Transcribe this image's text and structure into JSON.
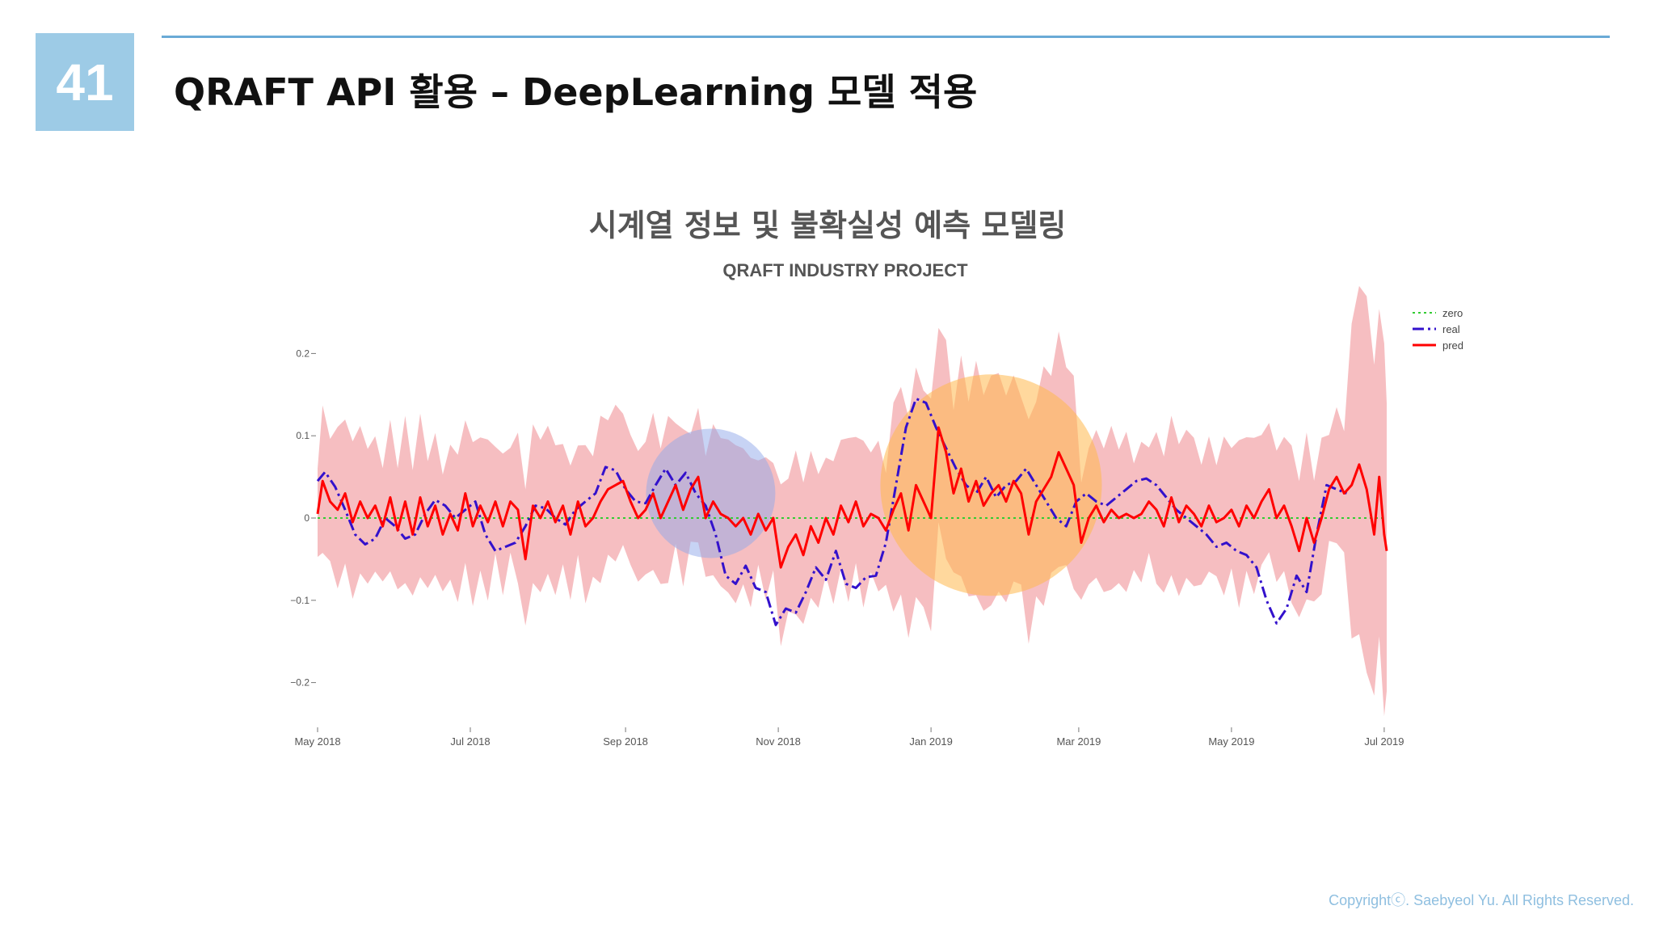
{
  "slide": {
    "number": "41",
    "title": "QRAFT API 활용 – DeepLearning 모델 적용",
    "copyright": "Copyrightⓒ. Saebyeol Yu. All Rights Reserved."
  },
  "colors": {
    "accent": "#6aaad6",
    "badge": "#9dcbe6",
    "band": "#f4b3b6",
    "real": "#3311cc",
    "pred": "#ff0000",
    "zero": "#33cc33"
  },
  "chart_data": {
    "type": "line",
    "title": "시계열 정보 및 불확실성 예측 모델링",
    "subtitle": "QRAFT INDUSTRY PROJECT",
    "x_ticks": [
      "May 2018",
      "Jul 2018",
      "Sep 2018",
      "Nov 2018",
      "Jan 2019",
      "Mar 2019",
      "May 2019",
      "Jul 2019"
    ],
    "x_tick_dates": [
      "2018-05-01",
      "2018-07-01",
      "2018-09-01",
      "2018-11-01",
      "2019-01-01",
      "2019-03-01",
      "2019-05-01",
      "2019-07-01"
    ],
    "y_ticks": [
      0.2,
      0.1,
      0,
      -0.1,
      -0.2
    ],
    "y_tick_labels": [
      "0.2",
      "0.1",
      "0",
      "−0.1",
      "−0.2"
    ],
    "xlim": [
      "2018-05-01",
      "2019-07-02"
    ],
    "ylim": [
      -0.26,
      0.27
    ],
    "legend": {
      "position": "top-right",
      "entries": [
        "zero",
        "real",
        "pred"
      ]
    },
    "grid": false,
    "highlights": [
      {
        "center": [
          "2018-10-05",
          0.03
        ],
        "color": "blue"
      },
      {
        "center": [
          "2019-01-25",
          0.04
        ],
        "color": "orange"
      }
    ],
    "series": [
      {
        "name": "zero",
        "style": "dotted",
        "color": "#33cc33",
        "points": [
          [
            "2018-05-01",
            0
          ],
          [
            "2019-07-02",
            0
          ]
        ]
      },
      {
        "name": "real",
        "style": "dashdot",
        "color": "#3311cc",
        "points": [
          [
            "2018-05-01",
            0.045
          ],
          [
            "2018-05-04",
            0.056
          ],
          [
            "2018-05-08",
            0.038
          ],
          [
            "2018-05-12",
            0.01
          ],
          [
            "2018-05-16",
            -0.02
          ],
          [
            "2018-05-20",
            -0.032
          ],
          [
            "2018-05-24",
            -0.025
          ],
          [
            "2018-05-28",
            0.0
          ],
          [
            "2018-06-01",
            -0.01
          ],
          [
            "2018-06-05",
            -0.025
          ],
          [
            "2018-06-09",
            -0.02
          ],
          [
            "2018-06-13",
            0.005
          ],
          [
            "2018-06-17",
            0.022
          ],
          [
            "2018-06-21",
            0.015
          ],
          [
            "2018-06-25",
            0.0
          ],
          [
            "2018-06-29",
            0.01
          ],
          [
            "2018-07-03",
            0.02
          ],
          [
            "2018-07-07",
            -0.02
          ],
          [
            "2018-07-11",
            -0.04
          ],
          [
            "2018-07-15",
            -0.035
          ],
          [
            "2018-07-19",
            -0.03
          ],
          [
            "2018-07-23",
            -0.01
          ],
          [
            "2018-07-27",
            0.015
          ],
          [
            "2018-07-31",
            0.012
          ],
          [
            "2018-08-04",
            0.0
          ],
          [
            "2018-08-08",
            -0.008
          ],
          [
            "2018-08-12",
            0.01
          ],
          [
            "2018-08-16",
            0.02
          ],
          [
            "2018-08-20",
            0.03
          ],
          [
            "2018-08-24",
            0.062
          ],
          [
            "2018-08-28",
            0.058
          ],
          [
            "2018-09-01",
            0.035
          ],
          [
            "2018-09-05",
            0.02
          ],
          [
            "2018-09-09",
            0.018
          ],
          [
            "2018-09-13",
            0.04
          ],
          [
            "2018-09-17",
            0.06
          ],
          [
            "2018-09-21",
            0.04
          ],
          [
            "2018-09-25",
            0.055
          ],
          [
            "2018-09-29",
            0.03
          ],
          [
            "2018-10-03",
            0.015
          ],
          [
            "2018-10-07",
            -0.02
          ],
          [
            "2018-10-11",
            -0.07
          ],
          [
            "2018-10-15",
            -0.08
          ],
          [
            "2018-10-19",
            -0.058
          ],
          [
            "2018-10-23",
            -0.085
          ],
          [
            "2018-10-27",
            -0.09
          ],
          [
            "2018-10-31",
            -0.13
          ],
          [
            "2018-11-04",
            -0.11
          ],
          [
            "2018-11-08",
            -0.115
          ],
          [
            "2018-11-12",
            -0.09
          ],
          [
            "2018-11-16",
            -0.06
          ],
          [
            "2018-11-20",
            -0.075
          ],
          [
            "2018-11-24",
            -0.04
          ],
          [
            "2018-11-28",
            -0.08
          ],
          [
            "2018-12-02",
            -0.085
          ],
          [
            "2018-12-06",
            -0.072
          ],
          [
            "2018-12-10",
            -0.07
          ],
          [
            "2018-12-14",
            -0.03
          ],
          [
            "2018-12-18",
            0.04
          ],
          [
            "2018-12-22",
            0.11
          ],
          [
            "2018-12-26",
            0.145
          ],
          [
            "2018-12-30",
            0.14
          ],
          [
            "2019-01-03",
            0.11
          ],
          [
            "2019-01-07",
            0.085
          ],
          [
            "2019-01-11",
            0.06
          ],
          [
            "2019-01-15",
            0.04
          ],
          [
            "2019-01-19",
            0.03
          ],
          [
            "2019-01-23",
            0.05
          ],
          [
            "2019-01-27",
            0.025
          ],
          [
            "2019-01-31",
            0.04
          ],
          [
            "2019-02-04",
            0.045
          ],
          [
            "2019-02-08",
            0.06
          ],
          [
            "2019-02-12",
            0.04
          ],
          [
            "2019-02-16",
            0.02
          ],
          [
            "2019-02-20",
            0.0
          ],
          [
            "2019-02-24",
            -0.01
          ],
          [
            "2019-02-28",
            0.02
          ],
          [
            "2019-03-04",
            0.03
          ],
          [
            "2019-03-08",
            0.02
          ],
          [
            "2019-03-12",
            0.015
          ],
          [
            "2019-03-16",
            0.025
          ],
          [
            "2019-03-20",
            0.035
          ],
          [
            "2019-03-24",
            0.045
          ],
          [
            "2019-03-28",
            0.048
          ],
          [
            "2019-04-01",
            0.04
          ],
          [
            "2019-04-05",
            0.025
          ],
          [
            "2019-04-09",
            0.01
          ],
          [
            "2019-04-13",
            0.0
          ],
          [
            "2019-04-17",
            -0.01
          ],
          [
            "2019-04-21",
            -0.02
          ],
          [
            "2019-04-25",
            -0.035
          ],
          [
            "2019-04-29",
            -0.03
          ],
          [
            "2019-05-03",
            -0.04
          ],
          [
            "2019-05-07",
            -0.045
          ],
          [
            "2019-05-11",
            -0.06
          ],
          [
            "2019-05-15",
            -0.1
          ],
          [
            "2019-05-19",
            -0.128
          ],
          [
            "2019-05-23",
            -0.11
          ],
          [
            "2019-05-27",
            -0.07
          ],
          [
            "2019-05-31",
            -0.09
          ],
          [
            "2019-06-04",
            -0.02
          ],
          [
            "2019-06-08",
            0.04
          ],
          [
            "2019-06-12",
            0.035
          ],
          [
            "2019-06-16",
            0.03
          ]
        ]
      },
      {
        "name": "pred",
        "style": "solid",
        "color": "#ff0000",
        "points": [
          [
            "2018-05-01",
            0.005
          ],
          [
            "2018-05-03",
            0.045
          ],
          [
            "2018-05-06",
            0.02
          ],
          [
            "2018-05-09",
            0.01
          ],
          [
            "2018-05-12",
            0.03
          ],
          [
            "2018-05-15",
            -0.005
          ],
          [
            "2018-05-18",
            0.02
          ],
          [
            "2018-05-21",
            0.0
          ],
          [
            "2018-05-24",
            0.015
          ],
          [
            "2018-05-27",
            -0.01
          ],
          [
            "2018-05-30",
            0.025
          ],
          [
            "2018-06-02",
            -0.015
          ],
          [
            "2018-06-05",
            0.02
          ],
          [
            "2018-06-08",
            -0.02
          ],
          [
            "2018-06-11",
            0.025
          ],
          [
            "2018-06-14",
            -0.01
          ],
          [
            "2018-06-17",
            0.015
          ],
          [
            "2018-06-20",
            -0.02
          ],
          [
            "2018-06-23",
            0.005
          ],
          [
            "2018-06-26",
            -0.015
          ],
          [
            "2018-06-29",
            0.03
          ],
          [
            "2018-07-02",
            -0.01
          ],
          [
            "2018-07-05",
            0.015
          ],
          [
            "2018-07-08",
            -0.005
          ],
          [
            "2018-07-11",
            0.02
          ],
          [
            "2018-07-14",
            -0.01
          ],
          [
            "2018-07-17",
            0.02
          ],
          [
            "2018-07-20",
            0.01
          ],
          [
            "2018-07-23",
            -0.05
          ],
          [
            "2018-07-26",
            0.015
          ],
          [
            "2018-07-29",
            0.0
          ],
          [
            "2018-08-01",
            0.02
          ],
          [
            "2018-08-04",
            -0.005
          ],
          [
            "2018-08-07",
            0.015
          ],
          [
            "2018-08-10",
            -0.02
          ],
          [
            "2018-08-13",
            0.02
          ],
          [
            "2018-08-16",
            -0.01
          ],
          [
            "2018-08-19",
            0.0
          ],
          [
            "2018-08-22",
            0.02
          ],
          [
            "2018-08-25",
            0.035
          ],
          [
            "2018-08-28",
            0.04
          ],
          [
            "2018-08-31",
            0.045
          ],
          [
            "2018-09-03",
            0.02
          ],
          [
            "2018-09-06",
            0.0
          ],
          [
            "2018-09-09",
            0.01
          ],
          [
            "2018-09-12",
            0.03
          ],
          [
            "2018-09-15",
            0.0
          ],
          [
            "2018-09-18",
            0.02
          ],
          [
            "2018-09-21",
            0.04
          ],
          [
            "2018-09-24",
            0.01
          ],
          [
            "2018-09-27",
            0.035
          ],
          [
            "2018-09-30",
            0.05
          ],
          [
            "2018-10-03",
            0.0
          ],
          [
            "2018-10-06",
            0.02
          ],
          [
            "2018-10-09",
            0.005
          ],
          [
            "2018-10-12",
            0.0
          ],
          [
            "2018-10-15",
            -0.01
          ],
          [
            "2018-10-18",
            0.0
          ],
          [
            "2018-10-21",
            -0.02
          ],
          [
            "2018-10-24",
            0.005
          ],
          [
            "2018-10-27",
            -0.015
          ],
          [
            "2018-10-30",
            0.0
          ],
          [
            "2018-11-02",
            -0.06
          ],
          [
            "2018-11-05",
            -0.035
          ],
          [
            "2018-11-08",
            -0.02
          ],
          [
            "2018-11-11",
            -0.045
          ],
          [
            "2018-11-14",
            -0.01
          ],
          [
            "2018-11-17",
            -0.03
          ],
          [
            "2018-11-20",
            0.0
          ],
          [
            "2018-11-23",
            -0.02
          ],
          [
            "2018-11-26",
            0.015
          ],
          [
            "2018-11-29",
            -0.005
          ],
          [
            "2018-12-02",
            0.02
          ],
          [
            "2018-12-05",
            -0.01
          ],
          [
            "2018-12-08",
            0.005
          ],
          [
            "2018-12-11",
            0.0
          ],
          [
            "2018-12-14",
            -0.015
          ],
          [
            "2018-12-17",
            0.01
          ],
          [
            "2018-12-20",
            0.03
          ],
          [
            "2018-12-23",
            -0.015
          ],
          [
            "2018-12-26",
            0.04
          ],
          [
            "2018-12-29",
            0.02
          ],
          [
            "2019-01-01",
            0.0
          ],
          [
            "2019-01-04",
            0.11
          ],
          [
            "2019-01-07",
            0.08
          ],
          [
            "2019-01-10",
            0.03
          ],
          [
            "2019-01-13",
            0.06
          ],
          [
            "2019-01-16",
            0.02
          ],
          [
            "2019-01-19",
            0.045
          ],
          [
            "2019-01-22",
            0.015
          ],
          [
            "2019-01-25",
            0.03
          ],
          [
            "2019-01-28",
            0.04
          ],
          [
            "2019-01-31",
            0.02
          ],
          [
            "2019-02-03",
            0.045
          ],
          [
            "2019-02-06",
            0.03
          ],
          [
            "2019-02-09",
            -0.02
          ],
          [
            "2019-02-12",
            0.02
          ],
          [
            "2019-02-15",
            0.035
          ],
          [
            "2019-02-18",
            0.05
          ],
          [
            "2019-02-21",
            0.08
          ],
          [
            "2019-02-24",
            0.06
          ],
          [
            "2019-02-27",
            0.04
          ],
          [
            "2019-03-02",
            -0.03
          ],
          [
            "2019-03-05",
            0.0
          ],
          [
            "2019-03-08",
            0.015
          ],
          [
            "2019-03-11",
            -0.005
          ],
          [
            "2019-03-14",
            0.01
          ],
          [
            "2019-03-17",
            0.0
          ],
          [
            "2019-03-20",
            0.005
          ],
          [
            "2019-03-23",
            0.0
          ],
          [
            "2019-03-26",
            0.005
          ],
          [
            "2019-03-29",
            0.02
          ],
          [
            "2019-04-01",
            0.01
          ],
          [
            "2019-04-04",
            -0.01
          ],
          [
            "2019-04-07",
            0.025
          ],
          [
            "2019-04-10",
            -0.005
          ],
          [
            "2019-04-13",
            0.015
          ],
          [
            "2019-04-16",
            0.005
          ],
          [
            "2019-04-19",
            -0.01
          ],
          [
            "2019-04-22",
            0.015
          ],
          [
            "2019-04-25",
            -0.005
          ],
          [
            "2019-04-28",
            0.0
          ],
          [
            "2019-05-01",
            0.01
          ],
          [
            "2019-05-04",
            -0.01
          ],
          [
            "2019-05-07",
            0.015
          ],
          [
            "2019-05-10",
            0.0
          ],
          [
            "2019-05-13",
            0.02
          ],
          [
            "2019-05-16",
            0.035
          ],
          [
            "2019-05-19",
            0.0
          ],
          [
            "2019-05-22",
            0.015
          ],
          [
            "2019-05-25",
            -0.01
          ],
          [
            "2019-05-28",
            -0.04
          ],
          [
            "2019-05-31",
            0.0
          ],
          [
            "2019-06-03",
            -0.03
          ],
          [
            "2019-06-06",
            0.0
          ],
          [
            "2019-06-09",
            0.035
          ],
          [
            "2019-06-12",
            0.05
          ],
          [
            "2019-06-15",
            0.03
          ],
          [
            "2019-06-18",
            0.04
          ],
          [
            "2019-06-21",
            0.065
          ],
          [
            "2019-06-24",
            0.035
          ],
          [
            "2019-06-27",
            -0.02
          ],
          [
            "2019-06-29",
            0.05
          ],
          [
            "2019-07-01",
            -0.02
          ],
          [
            "2019-07-02",
            -0.04
          ]
        ]
      }
    ]
  }
}
